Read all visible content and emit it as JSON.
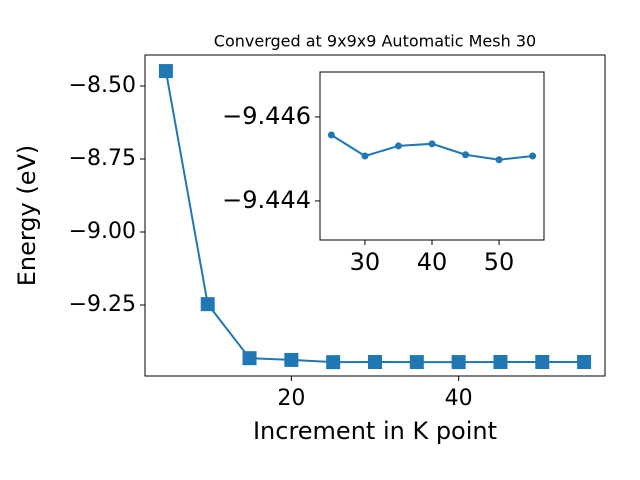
{
  "chart_data": [
    {
      "type": "line",
      "title": "Converged at 9x9x9 Automatic Mesh 30",
      "x_label": "Increment in K point",
      "y_label": "Energy (eV)",
      "marker": "square",
      "series": [
        {
          "color": "#1f77b4",
          "x": [
            5,
            10,
            15,
            20,
            25,
            30,
            35,
            40,
            45,
            50,
            55
          ],
          "values": [
            -8.449,
            -9.247,
            -9.432,
            -9.438,
            -9.44557,
            -9.44507,
            -9.44531,
            -9.44536,
            -9.4451,
            -9.44498,
            -9.44507
          ]
        }
      ],
      "xlim": [
        2.5,
        57.5
      ],
      "xticks": [
        20,
        40
      ],
      "ylim": [
        -9.493,
        -8.394
      ],
      "yticks": [
        {
          "value": -8.5,
          "label": "−8.50"
        },
        {
          "value": -8.75,
          "label": "−8.75"
        },
        {
          "value": -9.0,
          "label": "−9.00"
        },
        {
          "value": -9.25,
          "label": "−9.25"
        }
      ]
    },
    {
      "type": "line",
      "marker": "circle",
      "series": [
        {
          "color": "#1f77b4",
          "x": [
            25,
            30,
            35,
            40,
            45,
            50,
            55
          ],
          "values": [
            -9.44557,
            -9.44507,
            -9.44531,
            -9.44536,
            -9.4451,
            -9.44498,
            -9.44507
          ]
        }
      ],
      "xlim": [
        23.3,
        56.7
      ],
      "xticks": [
        30,
        40,
        50
      ],
      "ylim": [
        -9.44307,
        -9.44707
      ],
      "yticks": [
        {
          "value": -9.446,
          "label": "−9.446"
        },
        {
          "value": -9.444,
          "label": "−9.444"
        }
      ]
    }
  ]
}
